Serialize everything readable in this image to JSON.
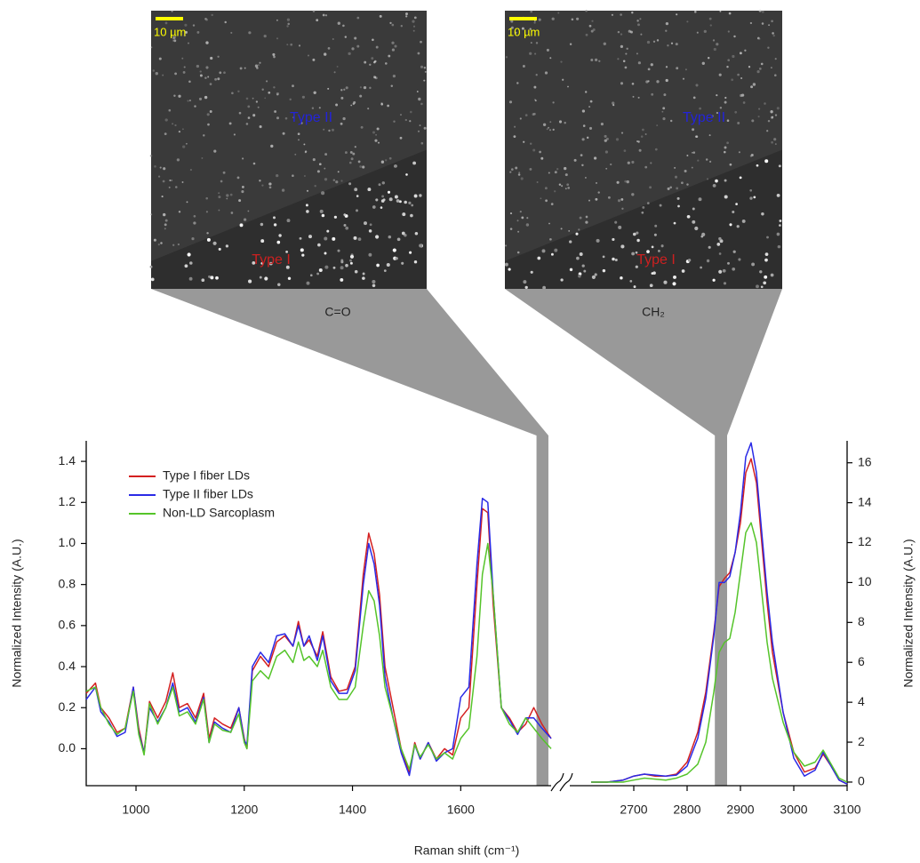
{
  "images": [
    {
      "scale_bar": "10 µm",
      "labels": [
        "Type II",
        "Type I"
      ],
      "caption": "C=O"
    },
    {
      "scale_bar": "10 µm",
      "labels": [
        "Type II",
        "Type I"
      ],
      "caption": "CH₂"
    }
  ],
  "chart_data": [
    {
      "type": "line",
      "xlabel": "Raman shift (cm⁻¹)",
      "ylabel": "Normalized Intensity (A.U.)",
      "xlim": [
        908,
        1767
      ],
      "xticks": [
        1000,
        1200,
        1400,
        1600
      ],
      "ylim": [
        -0.18,
        1.5
      ],
      "yticks": [
        {
          "value": 0,
          "label": "0.0"
        },
        0.2,
        0.4,
        0.6,
        0.8,
        {
          "value": 1,
          "label": "1.0"
        },
        1.2,
        1.4
      ],
      "legend": "upper left",
      "highlight": [
        1740,
        1762
      ],
      "x": [
        908,
        925,
        935,
        950,
        965,
        980,
        995,
        1005,
        1015,
        1025,
        1040,
        1055,
        1068,
        1080,
        1095,
        1110,
        1125,
        1135,
        1145,
        1160,
        1175,
        1190,
        1200,
        1205,
        1215,
        1230,
        1245,
        1260,
        1275,
        1290,
        1300,
        1310,
        1320,
        1335,
        1345,
        1360,
        1375,
        1390,
        1405,
        1420,
        1430,
        1440,
        1450,
        1460,
        1475,
        1490,
        1505,
        1515,
        1525,
        1540,
        1555,
        1570,
        1585,
        1600,
        1615,
        1630,
        1640,
        1650,
        1660,
        1675,
        1690,
        1705,
        1720,
        1735,
        1750,
        1767
      ],
      "series": [
        {
          "name": "Type I fiber LDs",
          "color": "#d42020",
          "values": [
            0.27,
            0.32,
            0.2,
            0.15,
            0.08,
            0.1,
            0.3,
            0.1,
            -0.02,
            0.23,
            0.15,
            0.23,
            0.37,
            0.2,
            0.22,
            0.15,
            0.27,
            0.05,
            0.15,
            0.12,
            0.1,
            0.2,
            0.05,
            0.0,
            0.38,
            0.45,
            0.4,
            0.52,
            0.55,
            0.5,
            0.62,
            0.5,
            0.53,
            0.45,
            0.57,
            0.35,
            0.28,
            0.29,
            0.4,
            0.85,
            1.05,
            0.95,
            0.75,
            0.4,
            0.2,
            0.0,
            -0.12,
            0.03,
            -0.05,
            0.03,
            -0.05,
            0.0,
            -0.03,
            0.15,
            0.2,
            0.8,
            1.17,
            1.15,
            0.7,
            0.2,
            0.15,
            0.08,
            0.12,
            0.2,
            0.12,
            0.05
          ]
        },
        {
          "name": "Type II fiber LDs",
          "color": "#2a2ae6",
          "values": [
            0.24,
            0.3,
            0.18,
            0.13,
            0.06,
            0.08,
            0.3,
            0.08,
            -0.02,
            0.2,
            0.13,
            0.2,
            0.32,
            0.18,
            0.2,
            0.13,
            0.25,
            0.03,
            0.13,
            0.1,
            0.08,
            0.2,
            0.04,
            0.02,
            0.4,
            0.47,
            0.42,
            0.55,
            0.56,
            0.5,
            0.6,
            0.5,
            0.55,
            0.43,
            0.55,
            0.33,
            0.27,
            0.27,
            0.38,
            0.8,
            1.0,
            0.9,
            0.7,
            0.35,
            0.15,
            -0.02,
            -0.13,
            0.02,
            -0.05,
            0.03,
            -0.06,
            -0.02,
            0.0,
            0.25,
            0.3,
            0.9,
            1.22,
            1.2,
            0.75,
            0.2,
            0.14,
            0.07,
            0.15,
            0.15,
            0.1,
            0.05
          ]
        },
        {
          "name": "Non-LD Sarcoplasm",
          "color": "#55c42a",
          "values": [
            0.28,
            0.3,
            0.2,
            0.12,
            0.07,
            0.1,
            0.28,
            0.07,
            -0.03,
            0.22,
            0.12,
            0.2,
            0.3,
            0.16,
            0.18,
            0.12,
            0.24,
            0.03,
            0.12,
            0.09,
            0.08,
            0.17,
            0.03,
            0.0,
            0.33,
            0.38,
            0.34,
            0.45,
            0.48,
            0.42,
            0.52,
            0.43,
            0.45,
            0.4,
            0.48,
            0.3,
            0.24,
            0.24,
            0.3,
            0.6,
            0.77,
            0.72,
            0.55,
            0.3,
            0.15,
            0.0,
            -0.1,
            0.02,
            -0.04,
            0.02,
            -0.05,
            -0.02,
            -0.05,
            0.05,
            0.1,
            0.45,
            0.85,
            1.0,
            0.75,
            0.2,
            0.12,
            0.08,
            0.15,
            0.1,
            0.05,
            0.0
          ]
        }
      ]
    },
    {
      "type": "line",
      "ylabel": "Normalized Intensity (A.U.)",
      "xlim": [
        2580,
        3100
      ],
      "xticks": [
        2700,
        2800,
        2900,
        3000,
        3100
      ],
      "ylim": [
        -0.18,
        17.1
      ],
      "yticks": [
        0,
        2,
        4,
        6,
        8,
        10,
        12,
        14,
        16
      ],
      "highlight": [
        2852,
        2875
      ],
      "x": [
        2620,
        2650,
        2680,
        2700,
        2720,
        2740,
        2760,
        2780,
        2800,
        2820,
        2835,
        2850,
        2860,
        2870,
        2880,
        2890,
        2900,
        2910,
        2920,
        2930,
        2940,
        2950,
        2960,
        2980,
        3000,
        3020,
        3040,
        3055,
        3070,
        3085,
        3100
      ],
      "series": [
        {
          "color": "#d42020",
          "values": [
            0,
            0,
            0.1,
            0.3,
            0.4,
            0.3,
            0.3,
            0.4,
            1.0,
            2.5,
            4.5,
            7.5,
            9.8,
            10.2,
            10.5,
            11.5,
            13,
            15.5,
            16.2,
            15,
            12,
            9,
            6.5,
            3.5,
            1.5,
            0.5,
            0.7,
            1.4,
            0.8,
            0.1,
            -0.1
          ]
        },
        {
          "color": "#2a2ae6",
          "values": [
            0,
            0,
            0.1,
            0.3,
            0.4,
            0.35,
            0.3,
            0.35,
            0.8,
            2.2,
            4.2,
            7.3,
            10,
            10,
            10.3,
            11.5,
            13.5,
            16.3,
            17,
            15.5,
            12.5,
            9.5,
            7,
            3.5,
            1.2,
            0.3,
            0.6,
            1.5,
            0.8,
            0.1,
            -0.1
          ]
        },
        {
          "color": "#55c42a",
          "values": [
            0,
            0,
            0,
            0.1,
            0.2,
            0.15,
            0.1,
            0.2,
            0.4,
            0.9,
            2.0,
            4.5,
            6.5,
            7.0,
            7.2,
            8.5,
            10.5,
            12.5,
            13,
            12,
            9.5,
            7,
            5.2,
            3,
            1.5,
            0.8,
            1,
            1.6,
            0.9,
            0.2,
            0
          ]
        }
      ]
    }
  ]
}
